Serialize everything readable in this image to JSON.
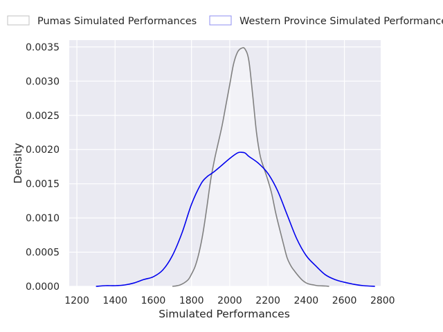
{
  "chart_data": {
    "type": "area",
    "title": "",
    "xlabel": "Simulated Performances",
    "ylabel": "Density",
    "xlim": [
      1160,
      2790
    ],
    "ylim": [
      0,
      0.0036
    ],
    "xticks": [
      1200,
      1400,
      1600,
      1800,
      2000,
      2200,
      2400,
      2600,
      2800
    ],
    "yticks": [
      0.0,
      0.0005,
      0.001,
      0.0015,
      0.002,
      0.0025,
      0.003,
      0.0035
    ],
    "xtick_labels": [
      "1200",
      "1400",
      "1600",
      "1800",
      "2000",
      "2200",
      "2400",
      "2600",
      "2800"
    ],
    "ytick_labels": [
      "0.0000",
      "0.0005",
      "0.0010",
      "0.0015",
      "0.0020",
      "0.0025",
      "0.0030",
      "0.0035"
    ],
    "grid": true,
    "legend_position": "top",
    "series": [
      {
        "name": "Pumas Simulated Performances",
        "line_color": "#808080",
        "fill_color": "#ffffff",
        "fill_opacity": 0.4,
        "legend_edge": "#c0c0c0",
        "x": [
          1700,
          1740,
          1780,
          1800,
          1820,
          1840,
          1860,
          1880,
          1900,
          1920,
          1940,
          1960,
          1980,
          2000,
          2020,
          2040,
          2060,
          2080,
          2100,
          2120,
          2140,
          2160,
          2180,
          2200,
          2220,
          2240,
          2260,
          2280,
          2300,
          2320,
          2340,
          2360,
          2380,
          2400,
          2420,
          2440,
          2460,
          2500,
          2520
        ],
        "values": [
          0.0,
          2e-05,
          9e-05,
          0.00018,
          0.0003,
          0.0005,
          0.00078,
          0.00115,
          0.00155,
          0.00185,
          0.0021,
          0.00235,
          0.00265,
          0.00295,
          0.00325,
          0.00342,
          0.00348,
          0.00347,
          0.0033,
          0.0028,
          0.00225,
          0.0019,
          0.00172,
          0.00155,
          0.00135,
          0.00108,
          0.00085,
          0.00063,
          0.00042,
          0.0003,
          0.00022,
          0.00015,
          9e-05,
          5e-05,
          3e-05,
          2e-05,
          1e-05,
          5e-06,
          0.0
        ]
      },
      {
        "name": "Western Province Simulated Performances",
        "line_color": "#0000ee",
        "fill_color": "#ffffff",
        "fill_opacity": 0.0,
        "legend_edge": "#8c8cf0",
        "x": [
          1300,
          1350,
          1400,
          1450,
          1500,
          1550,
          1600,
          1650,
          1700,
          1750,
          1800,
          1850,
          1880,
          1900,
          1920,
          1950,
          2000,
          2040,
          2060,
          2080,
          2100,
          2150,
          2200,
          2250,
          2300,
          2350,
          2400,
          2450,
          2500,
          2550,
          2600,
          2650,
          2700,
          2760
        ],
        "values": [
          0.0,
          1e-05,
          1e-05,
          2e-05,
          5e-05,
          0.0001,
          0.00014,
          0.00024,
          0.00045,
          0.00078,
          0.0012,
          0.0015,
          0.0016,
          0.00164,
          0.00168,
          0.00175,
          0.00187,
          0.00195,
          0.00196,
          0.00195,
          0.0019,
          0.0018,
          0.00165,
          0.0014,
          0.00105,
          0.0007,
          0.00045,
          0.0003,
          0.00017,
          0.0001,
          6e-05,
          3e-05,
          1e-05,
          0.0
        ]
      }
    ]
  },
  "colors": {
    "plot_background": "#eaeaf2",
    "grid": "#ffffff",
    "text": "#262626"
  }
}
